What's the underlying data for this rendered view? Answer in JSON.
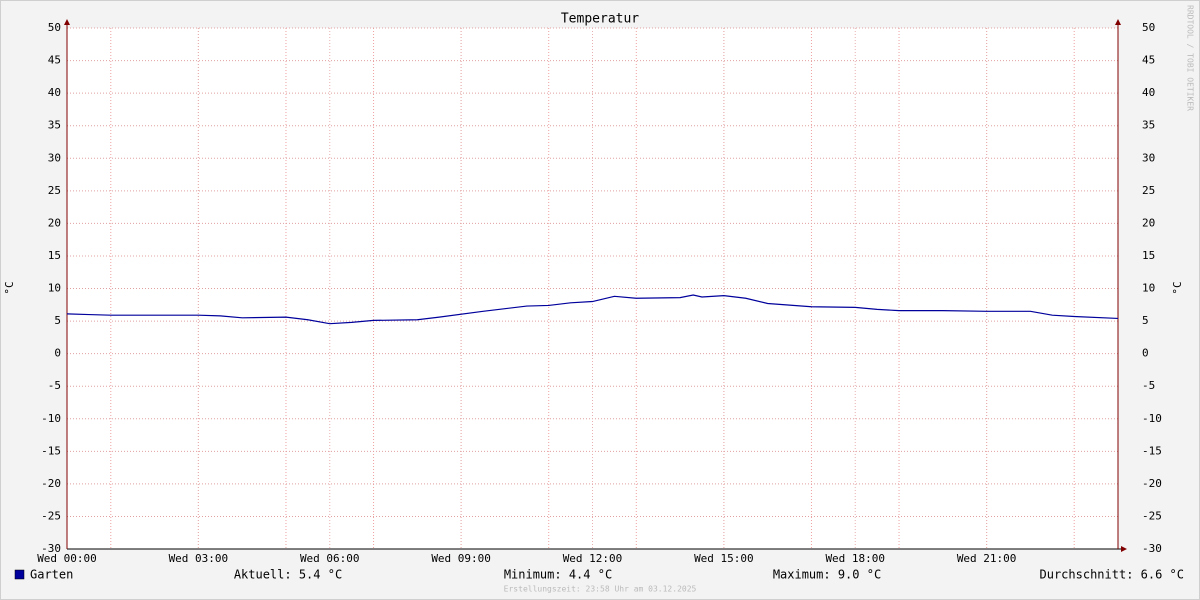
{
  "chart_data": {
    "type": "line",
    "title": "Temperatur",
    "y_label": "°C",
    "watermark": "RRDTOOL / TOBI OETIKER",
    "xlim": [
      0,
      24
    ],
    "xticks": [
      {
        "value": 0,
        "label": "Wed 00:00"
      },
      {
        "value": 3,
        "label": "Wed 03:00"
      },
      {
        "value": 6,
        "label": "Wed 06:00"
      },
      {
        "value": 9,
        "label": "Wed 09:00"
      },
      {
        "value": 12,
        "label": "Wed 12:00"
      },
      {
        "value": 15,
        "label": "Wed 15:00"
      },
      {
        "value": 18,
        "label": "Wed 18:00"
      },
      {
        "value": 21,
        "label": "Wed 21:00"
      }
    ],
    "x_major_grid": [
      1,
      3,
      5,
      7,
      9,
      11,
      13,
      15,
      17,
      19,
      21,
      23
    ],
    "ylim": [
      -30,
      50
    ],
    "yticks": [
      -30,
      -25,
      -20,
      -15,
      -10,
      -5,
      0,
      5,
      10,
      15,
      20,
      25,
      30,
      35,
      40,
      45,
      50
    ],
    "grid": true,
    "x": [
      0,
      0.5,
      1,
      2,
      3,
      3.5,
      4,
      5,
      5.5,
      6,
      6.5,
      7,
      8,
      8.5,
      9.5,
      10,
      10.5,
      11,
      11.5,
      12,
      12.5,
      13,
      14,
      14.3,
      14.5,
      15,
      15.5,
      16,
      17,
      18,
      18.5,
      19,
      20,
      21,
      22,
      22.5,
      23,
      24
    ],
    "series": [
      {
        "name": "Garten",
        "color": "#00009c",
        "values": [
          6.1,
          6.0,
          5.9,
          5.9,
          5.9,
          5.8,
          5.5,
          5.6,
          5.2,
          4.6,
          4.8,
          5.1,
          5.2,
          5.6,
          6.5,
          6.9,
          7.3,
          7.4,
          7.8,
          8.0,
          8.8,
          8.5,
          8.6,
          9.0,
          8.7,
          8.9,
          8.5,
          7.7,
          7.2,
          7.1,
          6.8,
          6.6,
          6.6,
          6.5,
          6.5,
          5.9,
          5.7,
          5.4
        ]
      }
    ],
    "stats": [
      "Aktuell: 5.4 °C",
      "Minimum: 4.4 °C",
      "Maximum: 9.0 °C",
      "Durchschnitt: 6.6 °C"
    ],
    "footer": "Erstellungszeit: 23:58 Uhr am 03.12.2025"
  }
}
